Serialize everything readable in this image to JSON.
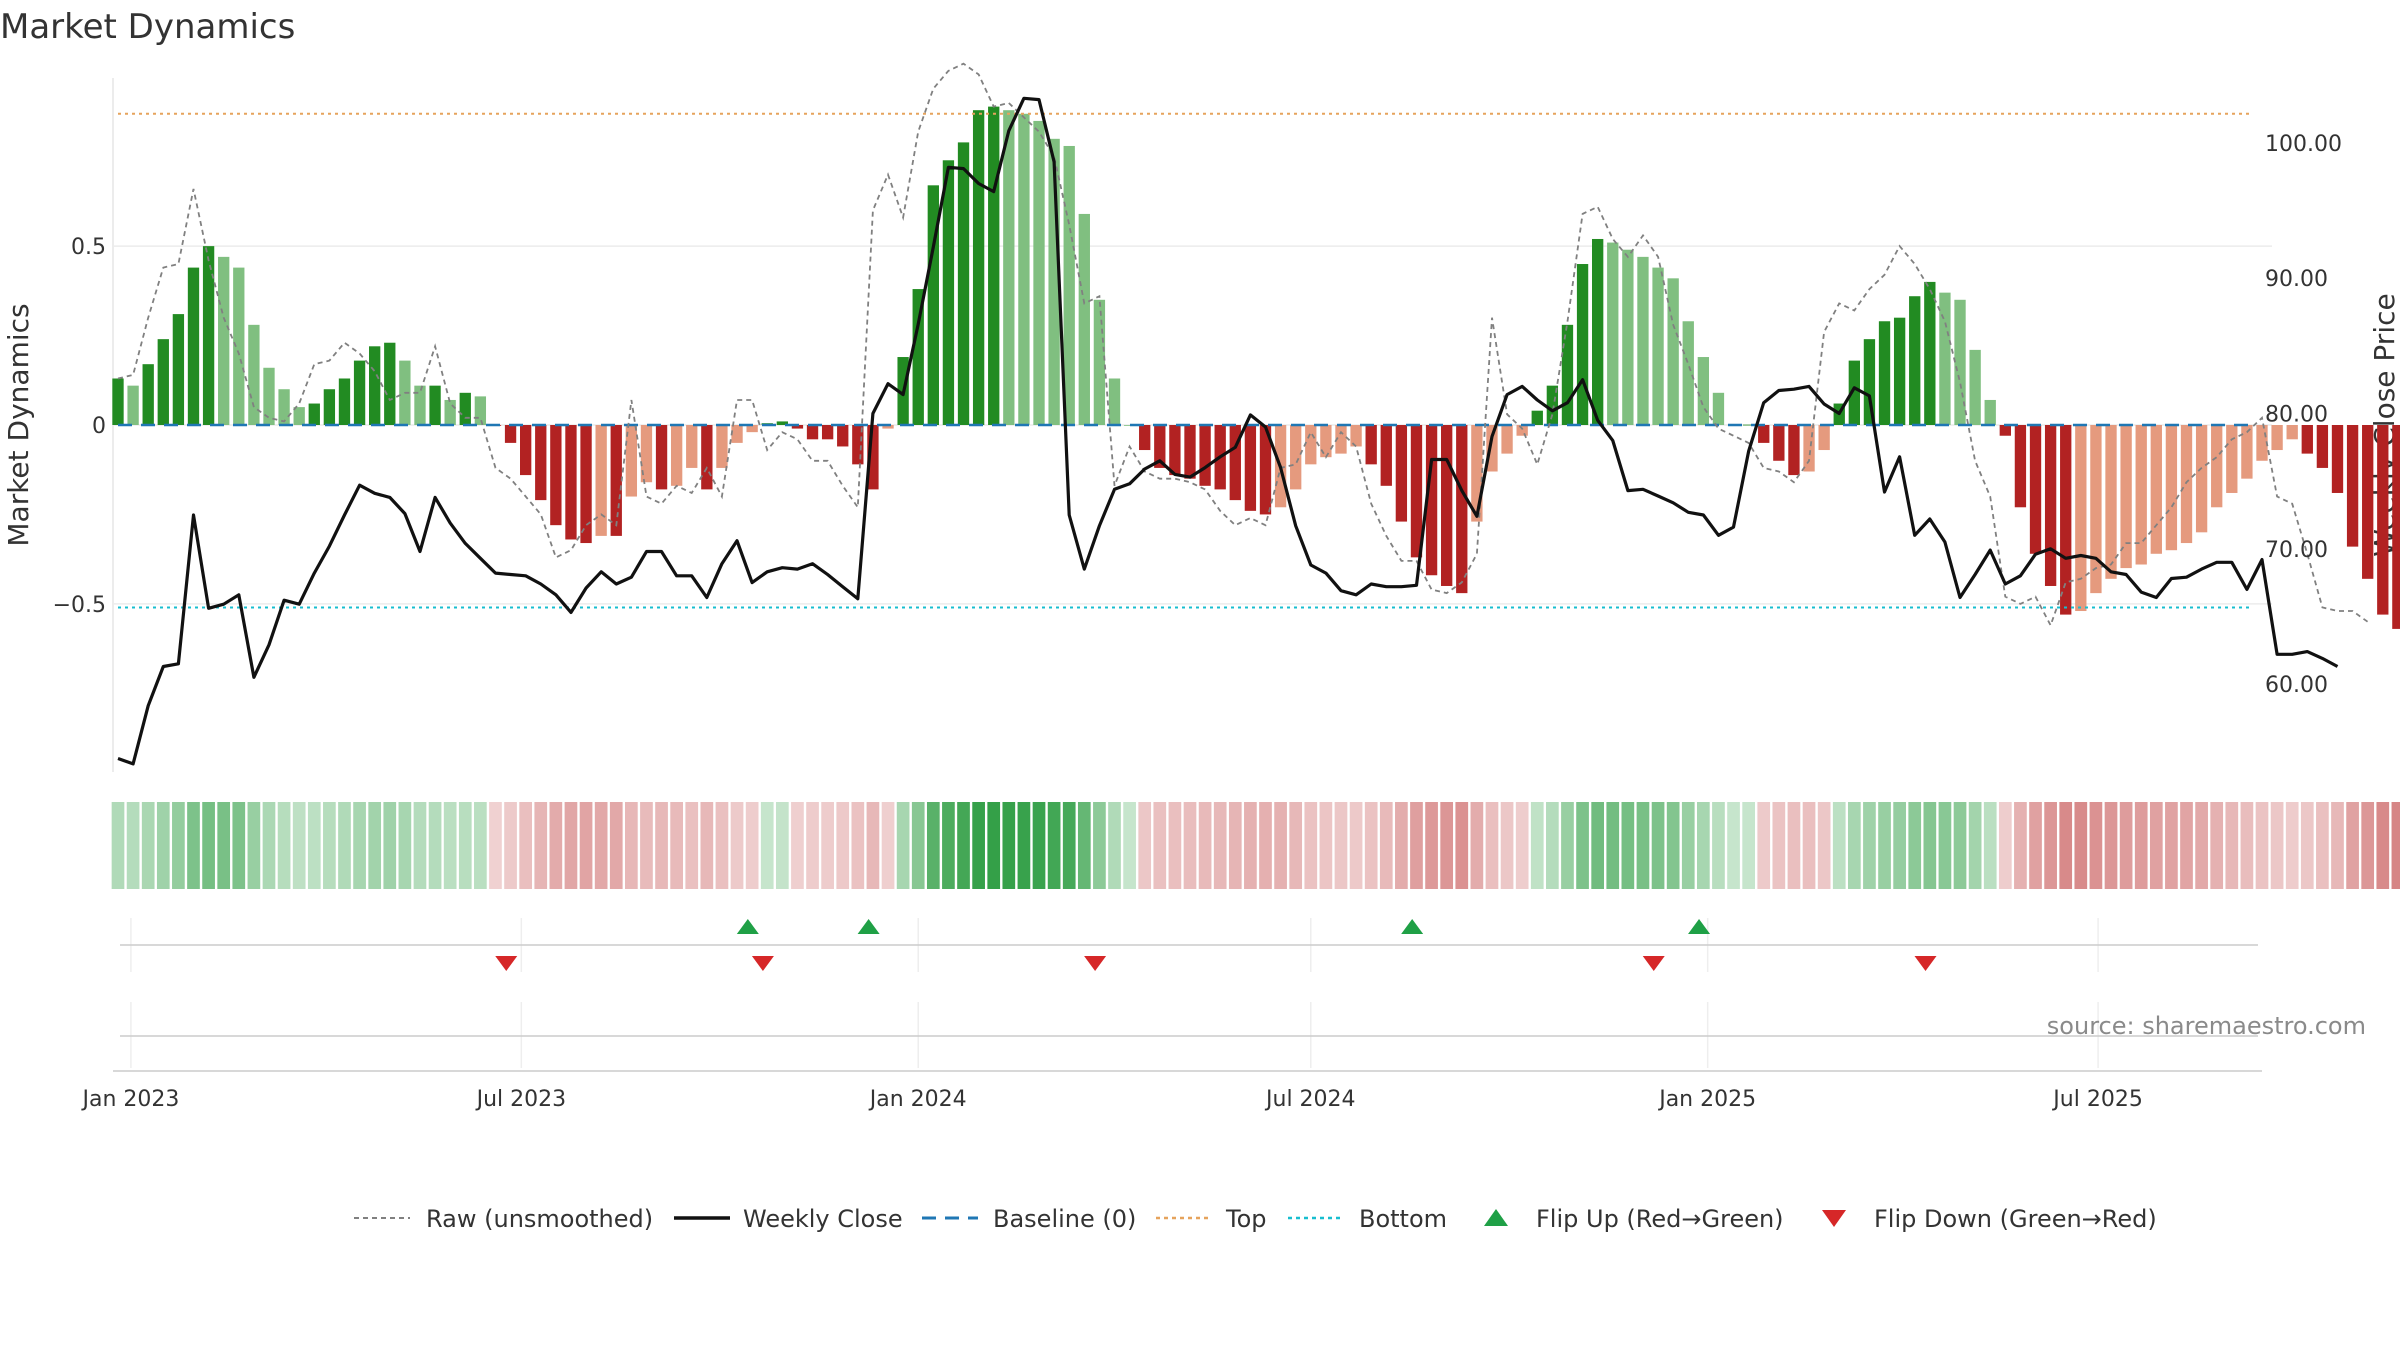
{
  "chart_data": {
    "type": "bar",
    "title": "Market Dynamics",
    "ylabel_left": "Market Dynamics",
    "ylabel_right": "Weekly Close Price",
    "x_axis_type": "date",
    "x_start": "2022-12-26",
    "x_end": "2025-09-15",
    "x_ticks": [
      {
        "date": "2023-01-01",
        "label": "Jan 2023"
      },
      {
        "date": "2023-07-01",
        "label": "Jul 2023"
      },
      {
        "date": "2024-01-01",
        "label": "Jan 2024"
      },
      {
        "date": "2024-07-01",
        "label": "Jul 2024"
      },
      {
        "date": "2025-01-01",
        "label": "Jan 2025"
      },
      {
        "date": "2025-07-01",
        "label": "Jul 2025"
      }
    ],
    "y_left_range": [
      -0.97,
      0.97
    ],
    "y_left_ticks": [
      {
        "v": 0.5,
        "label": "0.5"
      },
      {
        "v": 0,
        "label": "0"
      },
      {
        "v": -0.5,
        "label": "−0.5"
      }
    ],
    "y_right_range": [
      53.5,
      104.8
    ],
    "y_right_ticks": [
      {
        "v": 100,
        "label": "100.00"
      },
      {
        "v": 90,
        "label": "90.00"
      },
      {
        "v": 80,
        "label": "80.00"
      },
      {
        "v": 70,
        "label": "70.00"
      },
      {
        "v": 60,
        "label": "60.00"
      }
    ],
    "top_line": 0.87,
    "bottom_line": -0.51,
    "grid": true,
    "legend_position": "bottom-center",
    "colors": {
      "strong_green": "#228b22",
      "light_green": "#80bf80",
      "strong_red": "#b22222",
      "light_red": "#e59a7e",
      "close_line": "#111111",
      "raw_line": "#808080",
      "baseline": "#1f77b4",
      "top": "#e6a35c",
      "bottom": "#17becf",
      "flip_up": "#1fa046",
      "flip_down": "#d62728"
    },
    "series": [
      {
        "name": "Market Dynamics",
        "values": [
          0.13,
          0.11,
          0.17,
          0.24,
          0.31,
          0.44,
          0.5,
          0.47,
          0.44,
          0.28,
          0.16,
          0.1,
          0.05,
          0.06,
          0.1,
          0.13,
          0.18,
          0.22,
          0.23,
          0.18,
          0.11,
          0.11,
          0.07,
          0.09,
          0.08,
          -0.001,
          -0.05,
          -0.14,
          -0.21,
          -0.28,
          -0.32,
          -0.33,
          -0.31,
          -0.31,
          -0.2,
          -0.16,
          -0.18,
          -0.17,
          -0.12,
          -0.18,
          -0.12,
          -0.05,
          -0.02,
          0.005,
          0.01,
          -0.01,
          -0.04,
          -0.04,
          -0.06,
          -0.11,
          -0.18,
          -0.01,
          0.19,
          0.38,
          0.67,
          0.74,
          0.79,
          0.88,
          0.89,
          0.88,
          0.87,
          0.85,
          0.8,
          0.78,
          0.59,
          0.35,
          0.13,
          0,
          -0.07,
          -0.12,
          -0.14,
          -0.15,
          -0.17,
          -0.18,
          -0.21,
          -0.24,
          -0.25,
          -0.23,
          -0.18,
          -0.11,
          -0.09,
          -0.08,
          -0.06,
          -0.11,
          -0.17,
          -0.27,
          -0.37,
          -0.42,
          -0.45,
          -0.47,
          -0.27,
          -0.13,
          -0.08,
          -0.03,
          0.04,
          0.11,
          0.28,
          0.45,
          0.52,
          0.51,
          0.49,
          0.47,
          0.44,
          0.41,
          0.29,
          0.19,
          0.09,
          0.001,
          0.001,
          -0.05,
          -0.1,
          -0.14,
          -0.13,
          -0.07,
          0.06,
          0.18,
          0.24,
          0.29,
          0.3,
          0.36,
          0.4,
          0.37,
          0.35,
          0.21,
          0.07,
          -0.03,
          -0.23,
          -0.36,
          -0.45,
          -0.53,
          -0.52,
          -0.47,
          -0.43,
          -0.4,
          -0.39,
          -0.36,
          -0.35,
          -0.33,
          -0.3,
          -0.23,
          -0.19,
          -0.15,
          -0.1,
          -0.07,
          -0.04,
          -0.08,
          -0.12,
          -0.19,
          -0.34,
          -0.43,
          -0.53,
          -0.57
        ]
      },
      {
        "name": "Raw (unsmoothed)",
        "values": [
          0.13,
          0.14,
          0.3,
          0.44,
          0.45,
          0.66,
          0.46,
          0.3,
          0.2,
          0.05,
          0.02,
          0.01,
          0.06,
          0.17,
          0.18,
          0.23,
          0.2,
          0.15,
          0.07,
          0.09,
          0.09,
          0.22,
          0.06,
          0.02,
          0.02,
          -0.12,
          -0.15,
          -0.2,
          -0.25,
          -0.37,
          -0.35,
          -0.28,
          -0.25,
          -0.28,
          0.07,
          -0.2,
          -0.22,
          -0.17,
          -0.19,
          -0.12,
          -0.2,
          0.07,
          0.07,
          -0.07,
          -0.02,
          -0.04,
          -0.1,
          -0.1,
          -0.17,
          -0.23,
          0.6,
          0.7,
          0.58,
          0.82,
          0.94,
          0.99,
          1.01,
          0.98,
          0.89,
          0.9,
          0.86,
          0.82,
          0.75,
          0.56,
          0.34,
          0.36,
          -0.17,
          -0.06,
          -0.13,
          -0.15,
          -0.15,
          -0.16,
          -0.18,
          -0.24,
          -0.28,
          -0.26,
          -0.28,
          -0.12,
          -0.11,
          -0.02,
          -0.09,
          -0.02,
          -0.06,
          -0.22,
          -0.31,
          -0.38,
          -0.38,
          -0.46,
          -0.47,
          -0.44,
          -0.36,
          0.3,
          0.03,
          -0.01,
          -0.11,
          0.03,
          0.29,
          0.59,
          0.61,
          0.52,
          0.47,
          0.53,
          0.47,
          0.28,
          0.17,
          0.05,
          -0.01,
          -0.03,
          -0.05,
          -0.12,
          -0.13,
          -0.16,
          -0.1,
          0.26,
          0.34,
          0.32,
          0.38,
          0.42,
          0.5,
          0.45,
          0.38,
          0.29,
          0.12,
          -0.1,
          -0.2,
          -0.48,
          -0.5,
          -0.48,
          -0.56,
          -0.44,
          -0.43,
          -0.4,
          -0.39,
          -0.33,
          -0.33,
          -0.28,
          -0.23,
          -0.16,
          -0.12,
          -0.09,
          -0.04,
          -0.02,
          0.02,
          -0.2,
          -0.22,
          -0.36,
          -0.51,
          -0.52,
          -0.52,
          -0.55
        ]
      },
      {
        "name": "Weekly Close",
        "values": [
          54.5,
          54.1,
          58.4,
          61.3,
          61.5,
          72.5,
          65.6,
          65.9,
          66.6,
          60.5,
          62.9,
          66.2,
          65.9,
          68.2,
          70.2,
          72.5,
          74.7,
          74.1,
          73.8,
          72.6,
          69.8,
          73.8,
          71.9,
          70.4,
          69.3,
          68.2,
          68.1,
          68.0,
          67.4,
          66.6,
          65.3,
          67.1,
          68.3,
          67.4,
          67.9,
          69.8,
          69.8,
          68.0,
          68.0,
          66.4,
          68.9,
          70.6,
          67.5,
          68.3,
          68.6,
          68.5,
          68.9,
          68.1,
          67.2,
          66.3,
          80.0,
          82.2,
          81.4,
          86.6,
          92.3,
          98.2,
          98.1,
          97.0,
          96.4,
          100.9,
          103.3,
          103.2,
          98.6,
          72.5,
          68.5,
          71.7,
          74.4,
          74.8,
          75.9,
          76.5,
          75.5,
          75.3,
          76.0,
          76.8,
          77.5,
          79.9,
          79.0,
          76.0,
          71.7,
          68.8,
          68.2,
          66.9,
          66.6,
          67.4,
          67.2,
          67.2,
          67.3,
          76.6,
          76.6,
          74.3,
          72.4,
          78.3,
          81.4,
          82.0,
          81.0,
          80.2,
          80.8,
          82.5,
          79.5,
          78.0,
          74.3,
          74.4,
          73.9,
          73.4,
          72.7,
          72.5,
          71.0,
          71.6,
          77.2,
          80.8,
          81.7,
          81.8,
          82.0,
          80.7,
          80.0,
          81.9,
          81.3,
          74.2,
          76.8,
          71.0,
          72.2,
          70.5,
          66.4,
          68.1,
          69.9,
          67.4,
          68.0,
          69.6,
          70.0,
          69.3,
          69.5,
          69.3,
          68.3,
          68.1,
          66.8,
          66.4,
          67.8,
          67.9,
          68.5,
          69.0,
          69.0,
          67.0,
          69.2,
          62.2,
          62.2,
          62.4,
          61.9,
          61.3
        ]
      }
    ],
    "flip_up": [
      "2023-10-14",
      "2023-12-09",
      "2024-08-17",
      "2024-12-28"
    ],
    "flip_down": [
      "2023-06-24",
      "2023-10-21",
      "2024-03-23",
      "2024-12-07",
      "2025-04-12"
    ]
  },
  "legend": [
    {
      "key": "raw",
      "label": "Raw (unsmoothed)"
    },
    {
      "key": "close",
      "label": "Weekly Close"
    },
    {
      "key": "baseline",
      "label": "Baseline (0)"
    },
    {
      "key": "top",
      "label": "Top"
    },
    {
      "key": "bottom",
      "label": "Bottom"
    },
    {
      "key": "flip_up",
      "label": "Flip Up (Red→Green)"
    },
    {
      "key": "flip_down",
      "label": "Flip Down (Green→Red)"
    }
  ],
  "source": "source: sharemaestro.com"
}
